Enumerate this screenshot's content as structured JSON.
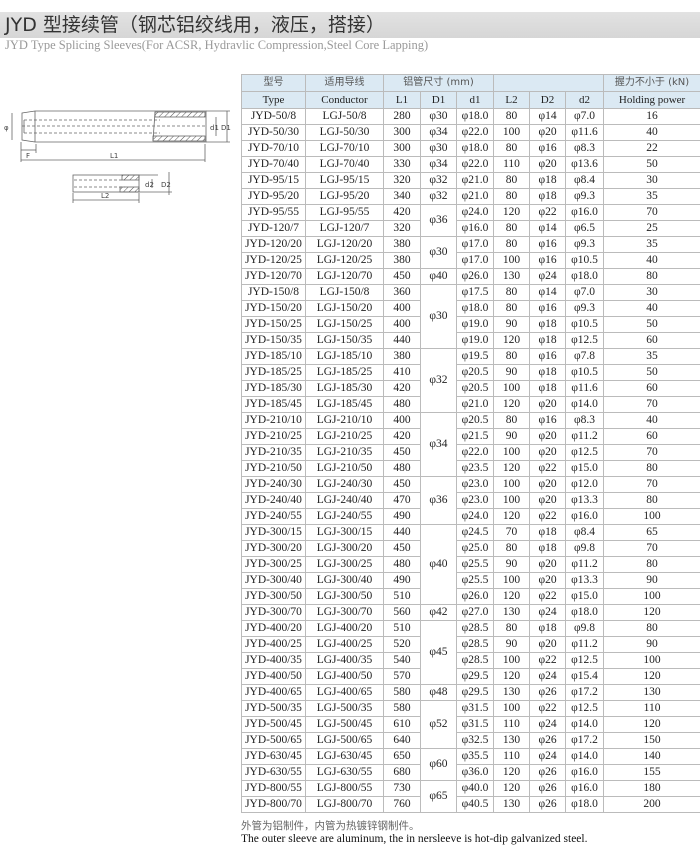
{
  "header": {
    "title": "JYD 型接续管（钢芯铝绞线用，液压，搭接）",
    "subtitle": "JYD Type Splicing Sleeves(For ACSR, Hydravlic Compression,Steel Core Lapping)"
  },
  "diagram": {
    "labels": {
      "phi": "φ",
      "F": "F",
      "L1": "L1",
      "d1": "d1",
      "D1": "D1",
      "d2": "d2",
      "D2": "D2",
      "L2": "L2"
    }
  },
  "table": {
    "header_cn": {
      "type": "型号",
      "conductor": "适用导线",
      "alu": "铝管尺寸 (mm)",
      "steel": "",
      "holding": "握力不小于 (kN)"
    },
    "header_en": {
      "type": "Type",
      "conductor": "Conductor",
      "L1": "L1",
      "D1": "D1",
      "d1": "d1",
      "L2": "L2",
      "D2": "D2",
      "d2": "d2",
      "holding": "Holding power"
    },
    "rows": [
      [
        "JYD-50/8",
        "LGJ-50/8",
        "280",
        "φ30",
        "φ18.0",
        "80",
        "φ14",
        "φ7.0",
        "16"
      ],
      [
        "JYD-50/30",
        "LGJ-50/30",
        "300",
        "φ34",
        "φ22.0",
        "100",
        "φ20",
        "φ11.6",
        "40"
      ],
      [
        "JYD-70/10",
        "LGJ-70/10",
        "300",
        "φ30",
        "φ18.0",
        "80",
        "φ16",
        "φ8.3",
        "22"
      ],
      [
        "JYD-70/40",
        "LGJ-70/40",
        "330",
        "φ34",
        "φ22.0",
        "110",
        "φ20",
        "φ13.6",
        "50"
      ],
      [
        "JYD-95/15",
        "LGJ-95/15",
        "320",
        "φ32",
        "φ21.0",
        "80",
        "φ18",
        "φ8.4",
        "30"
      ],
      [
        "JYD-95/20",
        "LGJ-95/20",
        "340",
        "φ32",
        "φ21.0",
        "80",
        "φ18",
        "φ9.3",
        "35"
      ],
      [
        "JYD-95/55",
        "LGJ-95/55",
        "420",
        "φ36",
        "φ24.0",
        "120",
        "φ22",
        "φ16.0",
        "70"
      ],
      [
        "JYD-120/7",
        "LGJ-120/7",
        "320",
        "",
        "φ16.0",
        "80",
        "φ14",
        "φ6.5",
        "25"
      ],
      [
        "JYD-120/20",
        "LGJ-120/20",
        "380",
        "φ30",
        "φ17.0",
        "80",
        "φ16",
        "φ9.3",
        "35"
      ],
      [
        "JYD-120/25",
        "LGJ-120/25",
        "380",
        "",
        "φ17.0",
        "100",
        "φ16",
        "φ10.5",
        "40"
      ],
      [
        "JYD-120/70",
        "LGJ-120/70",
        "450",
        "φ40",
        "φ26.0",
        "130",
        "φ24",
        "φ18.0",
        "80"
      ],
      [
        "JYD-150/8",
        "LGJ-150/8",
        "360",
        "φ30",
        "φ17.5",
        "80",
        "φ14",
        "φ7.0",
        "30"
      ],
      [
        "JYD-150/20",
        "LGJ-150/20",
        "400",
        "",
        "φ18.0",
        "80",
        "φ16",
        "φ9.3",
        "40"
      ],
      [
        "JYD-150/25",
        "LGJ-150/25",
        "400",
        "",
        "φ19.0",
        "90",
        "φ18",
        "φ10.5",
        "50"
      ],
      [
        "JYD-150/35",
        "LGJ-150/35",
        "440",
        "",
        "φ19.0",
        "120",
        "φ18",
        "φ12.5",
        "60"
      ],
      [
        "JYD-185/10",
        "LGJ-185/10",
        "380",
        "φ32",
        "φ19.5",
        "80",
        "φ16",
        "φ7.8",
        "35"
      ],
      [
        "JYD-185/25",
        "LGJ-185/25",
        "410",
        "",
        "φ20.5",
        "90",
        "φ18",
        "φ10.5",
        "50"
      ],
      [
        "JYD-185/30",
        "LGJ-185/30",
        "420",
        "",
        "φ20.5",
        "100",
        "φ18",
        "φ11.6",
        "60"
      ],
      [
        "JYD-185/45",
        "LGJ-185/45",
        "480",
        "",
        "φ21.0",
        "120",
        "φ20",
        "φ14.0",
        "70"
      ],
      [
        "JYD-210/10",
        "LGJ-210/10",
        "400",
        "φ34",
        "φ20.5",
        "80",
        "φ16",
        "φ8.3",
        "40"
      ],
      [
        "JYD-210/25",
        "LGJ-210/25",
        "420",
        "",
        "φ21.5",
        "90",
        "φ20",
        "φ11.2",
        "60"
      ],
      [
        "JYD-210/35",
        "LGJ-210/35",
        "450",
        "",
        "φ22.0",
        "100",
        "φ20",
        "φ12.5",
        "70"
      ],
      [
        "JYD-210/50",
        "LGJ-210/50",
        "480",
        "",
        "φ23.5",
        "120",
        "φ22",
        "φ15.0",
        "80"
      ],
      [
        "JYD-240/30",
        "LGJ-240/30",
        "450",
        "φ36",
        "φ23.0",
        "100",
        "φ20",
        "φ12.0",
        "70"
      ],
      [
        "JYD-240/40",
        "LGJ-240/40",
        "470",
        "",
        "φ23.0",
        "100",
        "φ20",
        "φ13.3",
        "80"
      ],
      [
        "JYD-240/55",
        "LGJ-240/55",
        "490",
        "",
        "φ24.0",
        "120",
        "φ22",
        "φ16.0",
        "100"
      ],
      [
        "JYD-300/15",
        "LGJ-300/15",
        "440",
        "φ40",
        "φ24.5",
        "70",
        "φ18",
        "φ8.4",
        "65"
      ],
      [
        "JYD-300/20",
        "LGJ-300/20",
        "450",
        "",
        "φ25.0",
        "80",
        "φ18",
        "φ9.8",
        "70"
      ],
      [
        "JYD-300/25",
        "LGJ-300/25",
        "480",
        "",
        "φ25.5",
        "90",
        "φ20",
        "φ11.2",
        "80"
      ],
      [
        "JYD-300/40",
        "LGJ-300/40",
        "490",
        "",
        "φ25.5",
        "100",
        "φ20",
        "φ13.3",
        "90"
      ],
      [
        "JYD-300/50",
        "LGJ-300/50",
        "510",
        "",
        "φ26.0",
        "120",
        "φ22",
        "φ15.0",
        "100"
      ],
      [
        "JYD-300/70",
        "LGJ-300/70",
        "560",
        "φ42",
        "φ27.0",
        "130",
        "φ24",
        "φ18.0",
        "120"
      ],
      [
        "JYD-400/20",
        "LGJ-400/20",
        "510",
        "φ45",
        "φ28.5",
        "80",
        "φ18",
        "φ9.8",
        "80"
      ],
      [
        "JYD-400/25",
        "LGJ-400/25",
        "520",
        "",
        "φ28.5",
        "90",
        "φ20",
        "φ11.2",
        "90"
      ],
      [
        "JYD-400/35",
        "LGJ-400/35",
        "540",
        "",
        "φ28.5",
        "100",
        "φ22",
        "φ12.5",
        "100"
      ],
      [
        "JYD-400/50",
        "LGJ-400/50",
        "570",
        "",
        "φ29.5",
        "120",
        "φ24",
        "φ15.4",
        "120"
      ],
      [
        "JYD-400/65",
        "LGJ-400/65",
        "580",
        "φ48",
        "φ29.5",
        "130",
        "φ26",
        "φ17.2",
        "130"
      ],
      [
        "JYD-500/35",
        "LGJ-500/35",
        "580",
        "φ52",
        "φ31.5",
        "100",
        "φ22",
        "φ12.5",
        "110"
      ],
      [
        "JYD-500/45",
        "LGJ-500/45",
        "610",
        "",
        "φ31.5",
        "110",
        "φ24",
        "φ14.0",
        "120"
      ],
      [
        "JYD-500/65",
        "LGJ-500/65",
        "640",
        "",
        "φ32.5",
        "130",
        "φ26",
        "φ17.2",
        "150"
      ],
      [
        "JYD-630/45",
        "LGJ-630/45",
        "650",
        "φ60",
        "φ35.5",
        "110",
        "φ24",
        "φ14.0",
        "140"
      ],
      [
        "JYD-630/55",
        "LGJ-630/55",
        "680",
        "",
        "φ36.0",
        "120",
        "φ26",
        "φ16.0",
        "155"
      ],
      [
        "JYD-800/55",
        "LGJ-800/55",
        "730",
        "φ65",
        "φ40.0",
        "120",
        "φ26",
        "φ16.0",
        "180"
      ],
      [
        "JYD-800/70",
        "LGJ-800/70",
        "760",
        "",
        "φ40.5",
        "130",
        "φ26",
        "φ18.0",
        "200"
      ]
    ],
    "d1_spans": [
      1,
      1,
      1,
      1,
      1,
      1,
      2,
      0,
      2,
      0,
      1,
      4,
      0,
      0,
      0,
      4,
      0,
      0,
      0,
      4,
      0,
      0,
      0,
      3,
      0,
      0,
      5,
      0,
      0,
      0,
      0,
      1,
      4,
      0,
      0,
      0,
      1,
      3,
      0,
      0,
      2,
      0,
      2,
      0
    ]
  },
  "notes": {
    "cn": "外管为铝制件，内管为热镀锌钢制件。",
    "en": "The outer sleeve are aluminum, the in nersleeve is hot-dip galvanized steel."
  }
}
